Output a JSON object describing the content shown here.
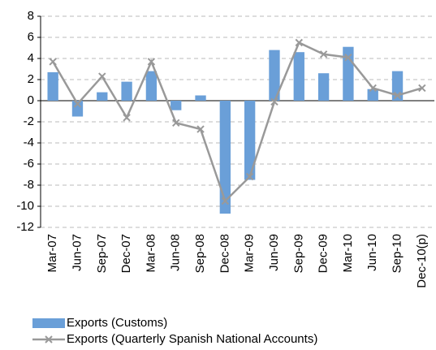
{
  "chart_data": {
    "type": "combo",
    "categories": [
      "Mar-07",
      "Jun-07",
      "Sep-07",
      "Dec-07",
      "Mar-08",
      "Jun-08",
      "Sep-08",
      "Dec-08",
      "Mar-09",
      "Jun-09",
      "Sep-09",
      "Dec-09",
      "Mar-10",
      "Jun-10",
      "Sep-10",
      "Dec-10(p)"
    ],
    "series": [
      {
        "name": "Exports (Customs)",
        "type": "bar",
        "color": "#6a9fd8",
        "values": [
          2.7,
          -1.5,
          0.8,
          1.8,
          2.8,
          -0.9,
          0.5,
          -10.7,
          -7.5,
          4.8,
          4.6,
          2.6,
          5.1,
          1.1,
          2.8,
          null
        ]
      },
      {
        "name": "Exports (Quarterly Spanish National Accounts)",
        "type": "line",
        "color": "#999999",
        "values": [
          3.7,
          -0.3,
          2.3,
          -1.6,
          3.7,
          -2.1,
          -2.7,
          -9.5,
          -7.2,
          -0.1,
          5.5,
          4.4,
          4.1,
          1.2,
          0.5,
          1.2
        ]
      }
    ],
    "ylim": [
      -12,
      8
    ],
    "yticks": [
      -12,
      -10,
      -8,
      -6,
      -4,
      -2,
      0,
      2,
      4,
      6,
      8
    ],
    "grid": true,
    "legend": "bottom"
  }
}
